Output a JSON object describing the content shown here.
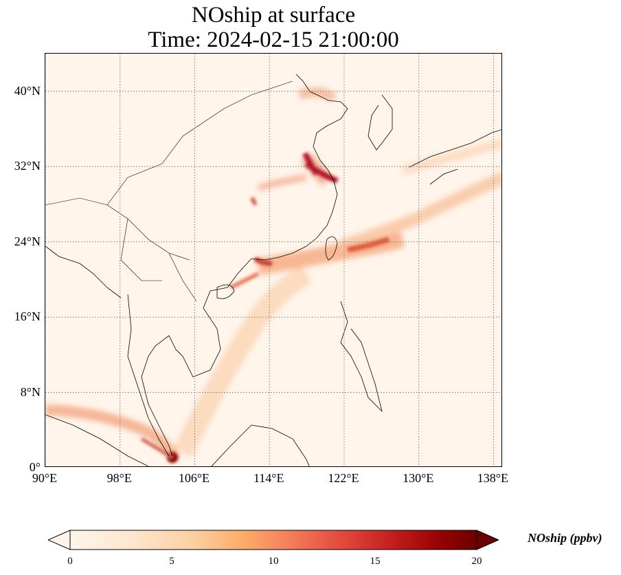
{
  "title": {
    "line1": "NOship at surface",
    "line2": "Time: 2024-02-15 21:00:00"
  },
  "axes": {
    "lon_range": [
      90,
      139
    ],
    "lat_range": [
      0,
      44
    ],
    "lat_ticks": [
      {
        "value": 0,
        "label": "0°"
      },
      {
        "value": 8,
        "label": "8°N"
      },
      {
        "value": 16,
        "label": "16°N"
      },
      {
        "value": 24,
        "label": "24°N"
      },
      {
        "value": 32,
        "label": "32°N"
      },
      {
        "value": 40,
        "label": "40°N"
      }
    ],
    "lon_ticks": [
      {
        "value": 90,
        "label": "90°E"
      },
      {
        "value": 98,
        "label": "98°E"
      },
      {
        "value": 106,
        "label": "106°E"
      },
      {
        "value": 114,
        "label": "114°E"
      },
      {
        "value": 122,
        "label": "122°E"
      },
      {
        "value": 130,
        "label": "130°E"
      },
      {
        "value": 138,
        "label": "138°E"
      }
    ],
    "gridlines": "dotted"
  },
  "colorbar": {
    "label": "NOship (ppbv)",
    "colormap": "OrRd",
    "range": [
      0,
      20
    ],
    "extend": "both",
    "ticks": [
      "0",
      "5",
      "10",
      "15",
      "20"
    ],
    "colors": [
      "#fff5eb",
      "#fee6ce",
      "#fdd0a2",
      "#fdae6b",
      "#fd8d3c",
      "#f16913",
      "#d94801",
      "#a63603",
      "#7f2704"
    ]
  },
  "colors": {
    "background": "#fff5eb",
    "low": "#fde0c5",
    "mid": "#f4a582",
    "high": "#d6604d",
    "peak": "#8b0000",
    "coastline": "#000000"
  }
}
